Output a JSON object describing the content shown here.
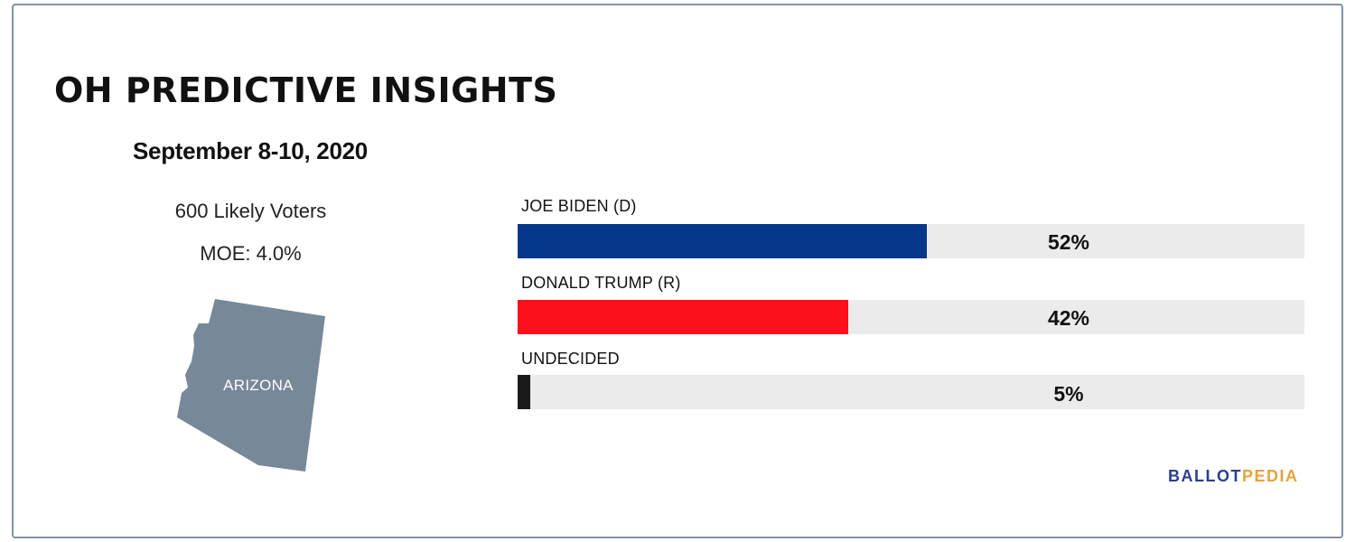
{
  "header": {
    "title": "OH PREDICTIVE INSIGHTS",
    "date": "September 8-10, 2020",
    "sample": "600 Likely Voters",
    "moe": "MOE: 4.0%"
  },
  "map": {
    "state_label": "ARIZONA",
    "fill_color": "#778899"
  },
  "brand": {
    "part1": "BALLOT",
    "part2": "PEDIA",
    "color1": "#2a3f8f",
    "color2": "#e8a23a"
  },
  "chart_data": {
    "type": "bar",
    "orientation": "horizontal",
    "categories": [
      "JOE BIDEN (D)",
      "DONALD TRUMP (R)",
      "UNDECIDED"
    ],
    "values": [
      52,
      42,
      5
    ],
    "value_labels": [
      "52%",
      "42%",
      "5%"
    ],
    "colors": [
      "#06378a",
      "#fc101c",
      "#1a1a1a"
    ],
    "xlim": [
      0,
      100
    ],
    "track_color": "#ebebeb"
  }
}
